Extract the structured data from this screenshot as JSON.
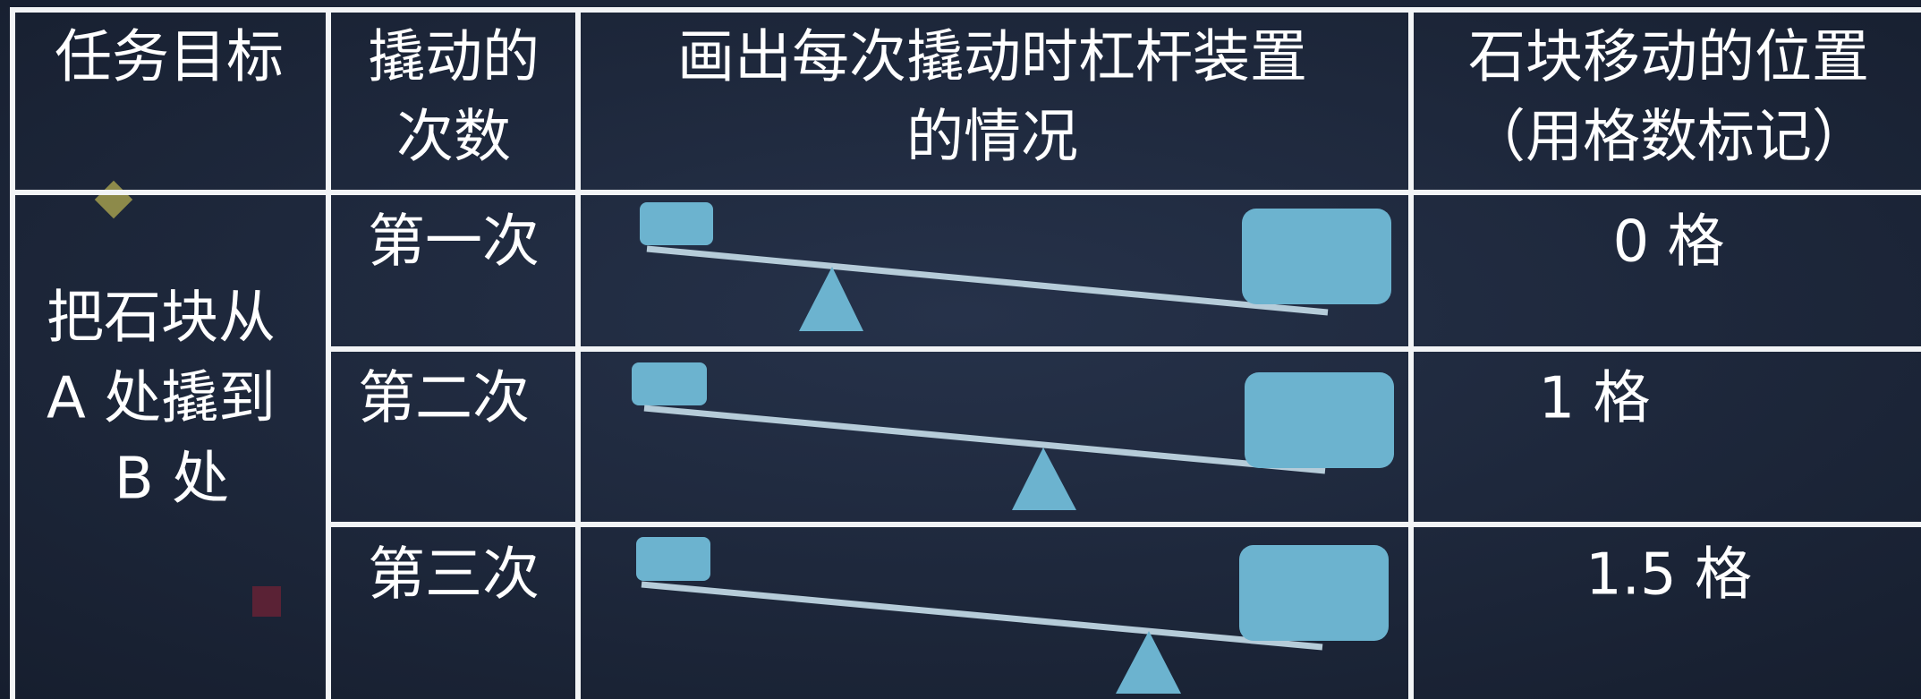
{
  "header": {
    "cells": [
      [
        "任务目标"
      ],
      [
        "撬动的",
        "次数"
      ],
      [
        "画出每次撬动时杠杆装置",
        "的情况"
      ],
      [
        "石块移动的位置",
        "（用格数标记）"
      ]
    ]
  },
  "goal": [
    "把石块从",
    "A 处撬到",
    "B 处"
  ],
  "rows": [
    {
      "count": "第一次",
      "position": "0 格"
    },
    {
      "count": "第二次",
      "position": "1 格"
    },
    {
      "count": "第三次",
      "position": "1.5 格"
    }
  ]
}
